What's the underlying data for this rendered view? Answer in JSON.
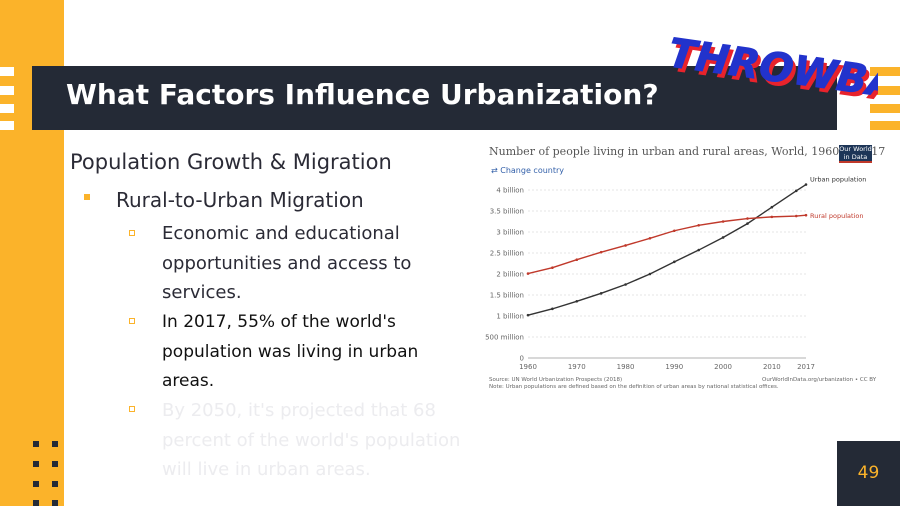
{
  "slide": {
    "title": "What Factors Influence Urbanization?",
    "page_number": "49",
    "accent_color": "#fbb32a",
    "dark_color": "#242a36"
  },
  "sticker": {
    "text": "THROWBACK",
    "colors": [
      "#2233cc",
      "#e8232c"
    ]
  },
  "content": {
    "heading": "Population Growth & Migration",
    "bullet": "Rural-to-Urban Migration",
    "sub_bullets": [
      "Economic and educational opportunities and access to services.",
      "In 2017, 55% of the world's population was living in urban areas.",
      "By 2050, it's projected that 68 percent of the world's population will live in urban areas."
    ]
  },
  "chart_data": {
    "type": "line",
    "title": "Number of people living in urban and rural areas, World, 1960 to 2017",
    "change_country": "Change country",
    "logo_text": [
      "Our World",
      "in Data"
    ],
    "source": "Source: UN World Urbanization Prospects (2018)",
    "note": "Note: Urban populations are defined based on the definition of urban areas by national statistical offices.",
    "credit": "OurWorldInData.org/urbanization • CC BY",
    "x_ticks": [
      "1960",
      "1970",
      "1980",
      "1990",
      "2000",
      "2010",
      "2017"
    ],
    "y_ticks": [
      {
        "v": 0,
        "label": "0"
      },
      {
        "v": 0.5,
        "label": "500 million"
      },
      {
        "v": 1,
        "label": "1 billion"
      },
      {
        "v": 1.5,
        "label": "1.5 billion"
      },
      {
        "v": 2,
        "label": "2 billion"
      },
      {
        "v": 2.5,
        "label": "2.5 billion"
      },
      {
        "v": 3,
        "label": "3 billion"
      },
      {
        "v": 3.5,
        "label": "3.5 billion"
      },
      {
        "v": 4,
        "label": "4 billion"
      }
    ],
    "xlim": [
      1960,
      2017
    ],
    "ylim": [
      0,
      4
    ],
    "series": [
      {
        "name": "Urban population",
        "color": "#333333",
        "x": [
          1960,
          1965,
          1970,
          1975,
          1980,
          1985,
          1990,
          1995,
          2000,
          2005,
          2010,
          2015,
          2017
        ],
        "values": [
          1.02,
          1.17,
          1.35,
          1.54,
          1.75,
          2.0,
          2.29,
          2.57,
          2.87,
          3.2,
          3.59,
          3.98,
          4.13
        ]
      },
      {
        "name": "Rural population",
        "color": "#c0392b",
        "x": [
          1960,
          1965,
          1970,
          1975,
          1980,
          1985,
          1990,
          1995,
          2000,
          2005,
          2010,
          2015,
          2017
        ],
        "values": [
          2.01,
          2.15,
          2.34,
          2.52,
          2.68,
          2.85,
          3.03,
          3.16,
          3.25,
          3.32,
          3.36,
          3.38,
          3.4
        ]
      }
    ]
  }
}
